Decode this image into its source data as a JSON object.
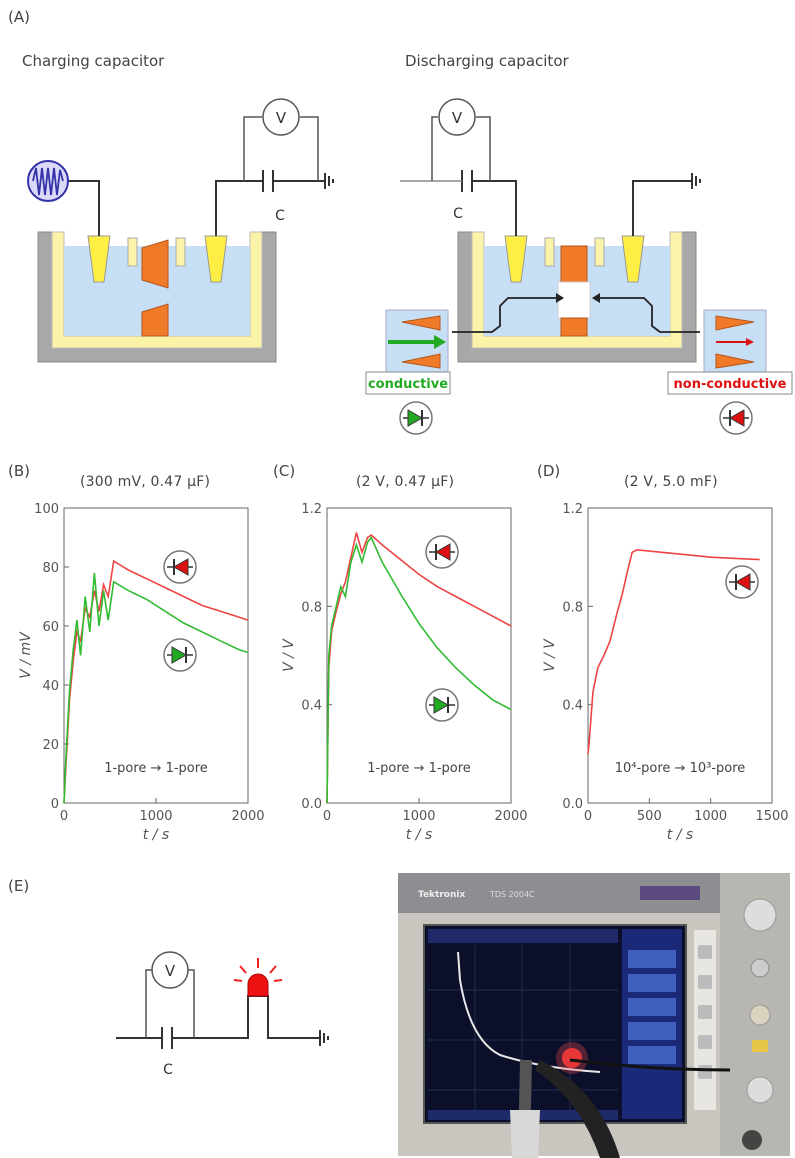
{
  "panels": {
    "A": "(A)",
    "B": "(B)",
    "C": "(C)",
    "D": "(D)",
    "E": "(E)"
  },
  "schematic": {
    "charging_title": "Charging capacitor",
    "discharging_title": "Discharging capacitor",
    "voltmeter": "V",
    "capacitor": "C",
    "conductive": "conductive",
    "non_conductive": "non-conductive"
  },
  "colors": {
    "liquid": "#c7dff5",
    "tank_wall": "#a8a8a8",
    "tank_inner": "#fbf4a8",
    "electrode": "#ffee44",
    "pore": "#f07a28",
    "conductive_green": "#22aa22",
    "nonconductive_red": "#dd1111"
  },
  "chart_data": [
    {
      "type": "line",
      "panel": "B",
      "title": "(300 mV, 0.47 µF)",
      "xlabel": "t / s",
      "ylabel": "V / mV",
      "xlim": [
        0,
        2000
      ],
      "ylim": [
        0,
        100
      ],
      "xticks": [
        "0",
        "1000",
        "2000"
      ],
      "yticks": [
        "0",
        "20",
        "40",
        "60",
        "80",
        "100"
      ],
      "annotation": "1-pore → 1-pore",
      "series": [
        {
          "color": "#ee4444",
          "x": [
            0,
            25,
            60,
            100,
            140,
            180,
            230,
            280,
            330,
            380,
            430,
            480,
            540,
            700,
            900,
            1100,
            1300,
            1500,
            1700,
            1900,
            2000
          ],
          "y": [
            0,
            15,
            35,
            48,
            58,
            55,
            66,
            63,
            72,
            65,
            74,
            70,
            82,
            79,
            76,
            73,
            70,
            67,
            65,
            63,
            62
          ]
        },
        {
          "color": "#33bb33",
          "x": [
            0,
            25,
            60,
            100,
            140,
            180,
            230,
            280,
            330,
            380,
            430,
            480,
            540,
            700,
            900,
            1100,
            1300,
            1500,
            1700,
            1900,
            2000
          ],
          "y": [
            0,
            18,
            38,
            52,
            62,
            50,
            70,
            58,
            78,
            60,
            72,
            62,
            75,
            72,
            69,
            65,
            61,
            58,
            55,
            52,
            51
          ]
        }
      ]
    },
    {
      "type": "line",
      "panel": "C",
      "title": "(2 V, 0.47 µF)",
      "xlabel": "t / s",
      "ylabel": "V / V",
      "xlim": [
        0,
        2000
      ],
      "ylim": [
        0,
        1.2
      ],
      "xticks": [
        "0",
        "1000",
        "2000"
      ],
      "yticks": [
        "0.0",
        "0.4",
        "0.8",
        "1.2"
      ],
      "annotation": "1-pore → 1-pore",
      "series": [
        {
          "color": "#ee4444",
          "x": [
            0,
            20,
            50,
            100,
            150,
            200,
            260,
            320,
            380,
            440,
            480,
            600,
            800,
            1000,
            1200,
            1400,
            1600,
            1800,
            2000
          ],
          "y": [
            0,
            0.55,
            0.7,
            0.78,
            0.85,
            0.9,
            1.0,
            1.1,
            1.02,
            1.08,
            1.09,
            1.05,
            0.99,
            0.93,
            0.88,
            0.84,
            0.8,
            0.76,
            0.72
          ]
        },
        {
          "color": "#33bb33",
          "x": [
            0,
            20,
            50,
            100,
            150,
            200,
            260,
            320,
            380,
            440,
            480,
            600,
            800,
            1000,
            1200,
            1400,
            1600,
            1800,
            2000
          ],
          "y": [
            0,
            0.6,
            0.72,
            0.8,
            0.88,
            0.84,
            0.98,
            1.05,
            0.98,
            1.06,
            1.08,
            0.98,
            0.85,
            0.73,
            0.63,
            0.55,
            0.48,
            0.42,
            0.38
          ]
        }
      ]
    },
    {
      "type": "line",
      "panel": "D",
      "title": "(2 V, 5.0 mF)",
      "xlabel": "t / s",
      "ylabel": "V / V",
      "xlim": [
        0,
        1500
      ],
      "ylim": [
        0,
        1.2
      ],
      "xticks": [
        "0",
        "500",
        "1000",
        "1500"
      ],
      "yticks": [
        "0.0",
        "0.4",
        "0.8",
        "1.2"
      ],
      "annotation": "10⁴-pore → 10³-pore",
      "series": [
        {
          "color": "#ee4444",
          "x": [
            0,
            10,
            40,
            80,
            130,
            180,
            230,
            280,
            320,
            360,
            400,
            600,
            800,
            1000,
            1200,
            1400
          ],
          "y": [
            0.2,
            0.25,
            0.45,
            0.55,
            0.6,
            0.66,
            0.76,
            0.85,
            0.94,
            1.02,
            1.03,
            1.02,
            1.01,
            1.0,
            0.995,
            0.99
          ]
        }
      ]
    }
  ],
  "oscilloscope": {
    "brand": "Tektronix",
    "model": "TDS 2004C"
  }
}
